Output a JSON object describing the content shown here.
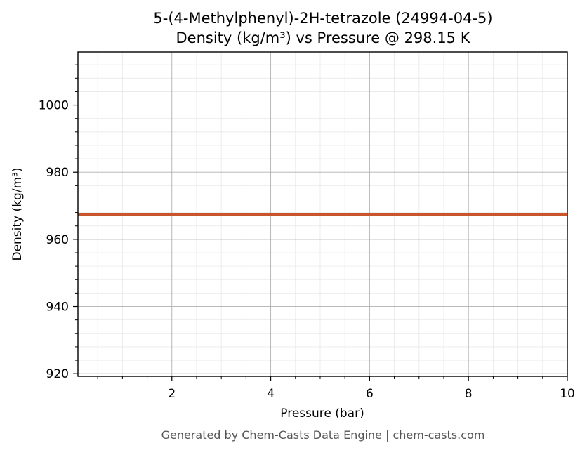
{
  "chart_data": {
    "type": "line",
    "title_line1": "5-(4-Methylphenyl)-2H-tetrazole (24994-04-5)",
    "title_line2": "Density (kg/m³) vs Pressure @ 298.15 K",
    "xlabel": "Pressure (bar)",
    "ylabel": "Density (kg/m³)",
    "xlim": [
      0.1,
      10
    ],
    "ylim": [
      919.2,
      1015.8
    ],
    "x_ticks": [
      2,
      4,
      6,
      8,
      10
    ],
    "x_tick_labels": [
      "2",
      "4",
      "6",
      "8",
      "10"
    ],
    "y_ticks": [
      920,
      940,
      960,
      980,
      1000
    ],
    "y_tick_labels": [
      "920",
      "940",
      "960",
      "980",
      "1000"
    ],
    "grid": true,
    "series": [
      {
        "color": "#c8552b",
        "x": [
          0.1,
          1,
          2,
          3,
          4,
          5,
          6,
          7,
          8,
          9,
          10
        ],
        "y": [
          967.4,
          967.4,
          967.4,
          967.4,
          967.4,
          967.4,
          967.4,
          967.4,
          967.4,
          967.4,
          967.4
        ]
      }
    ]
  },
  "footer": "Generated by Chem-Casts Data Engine | chem-casts.com"
}
